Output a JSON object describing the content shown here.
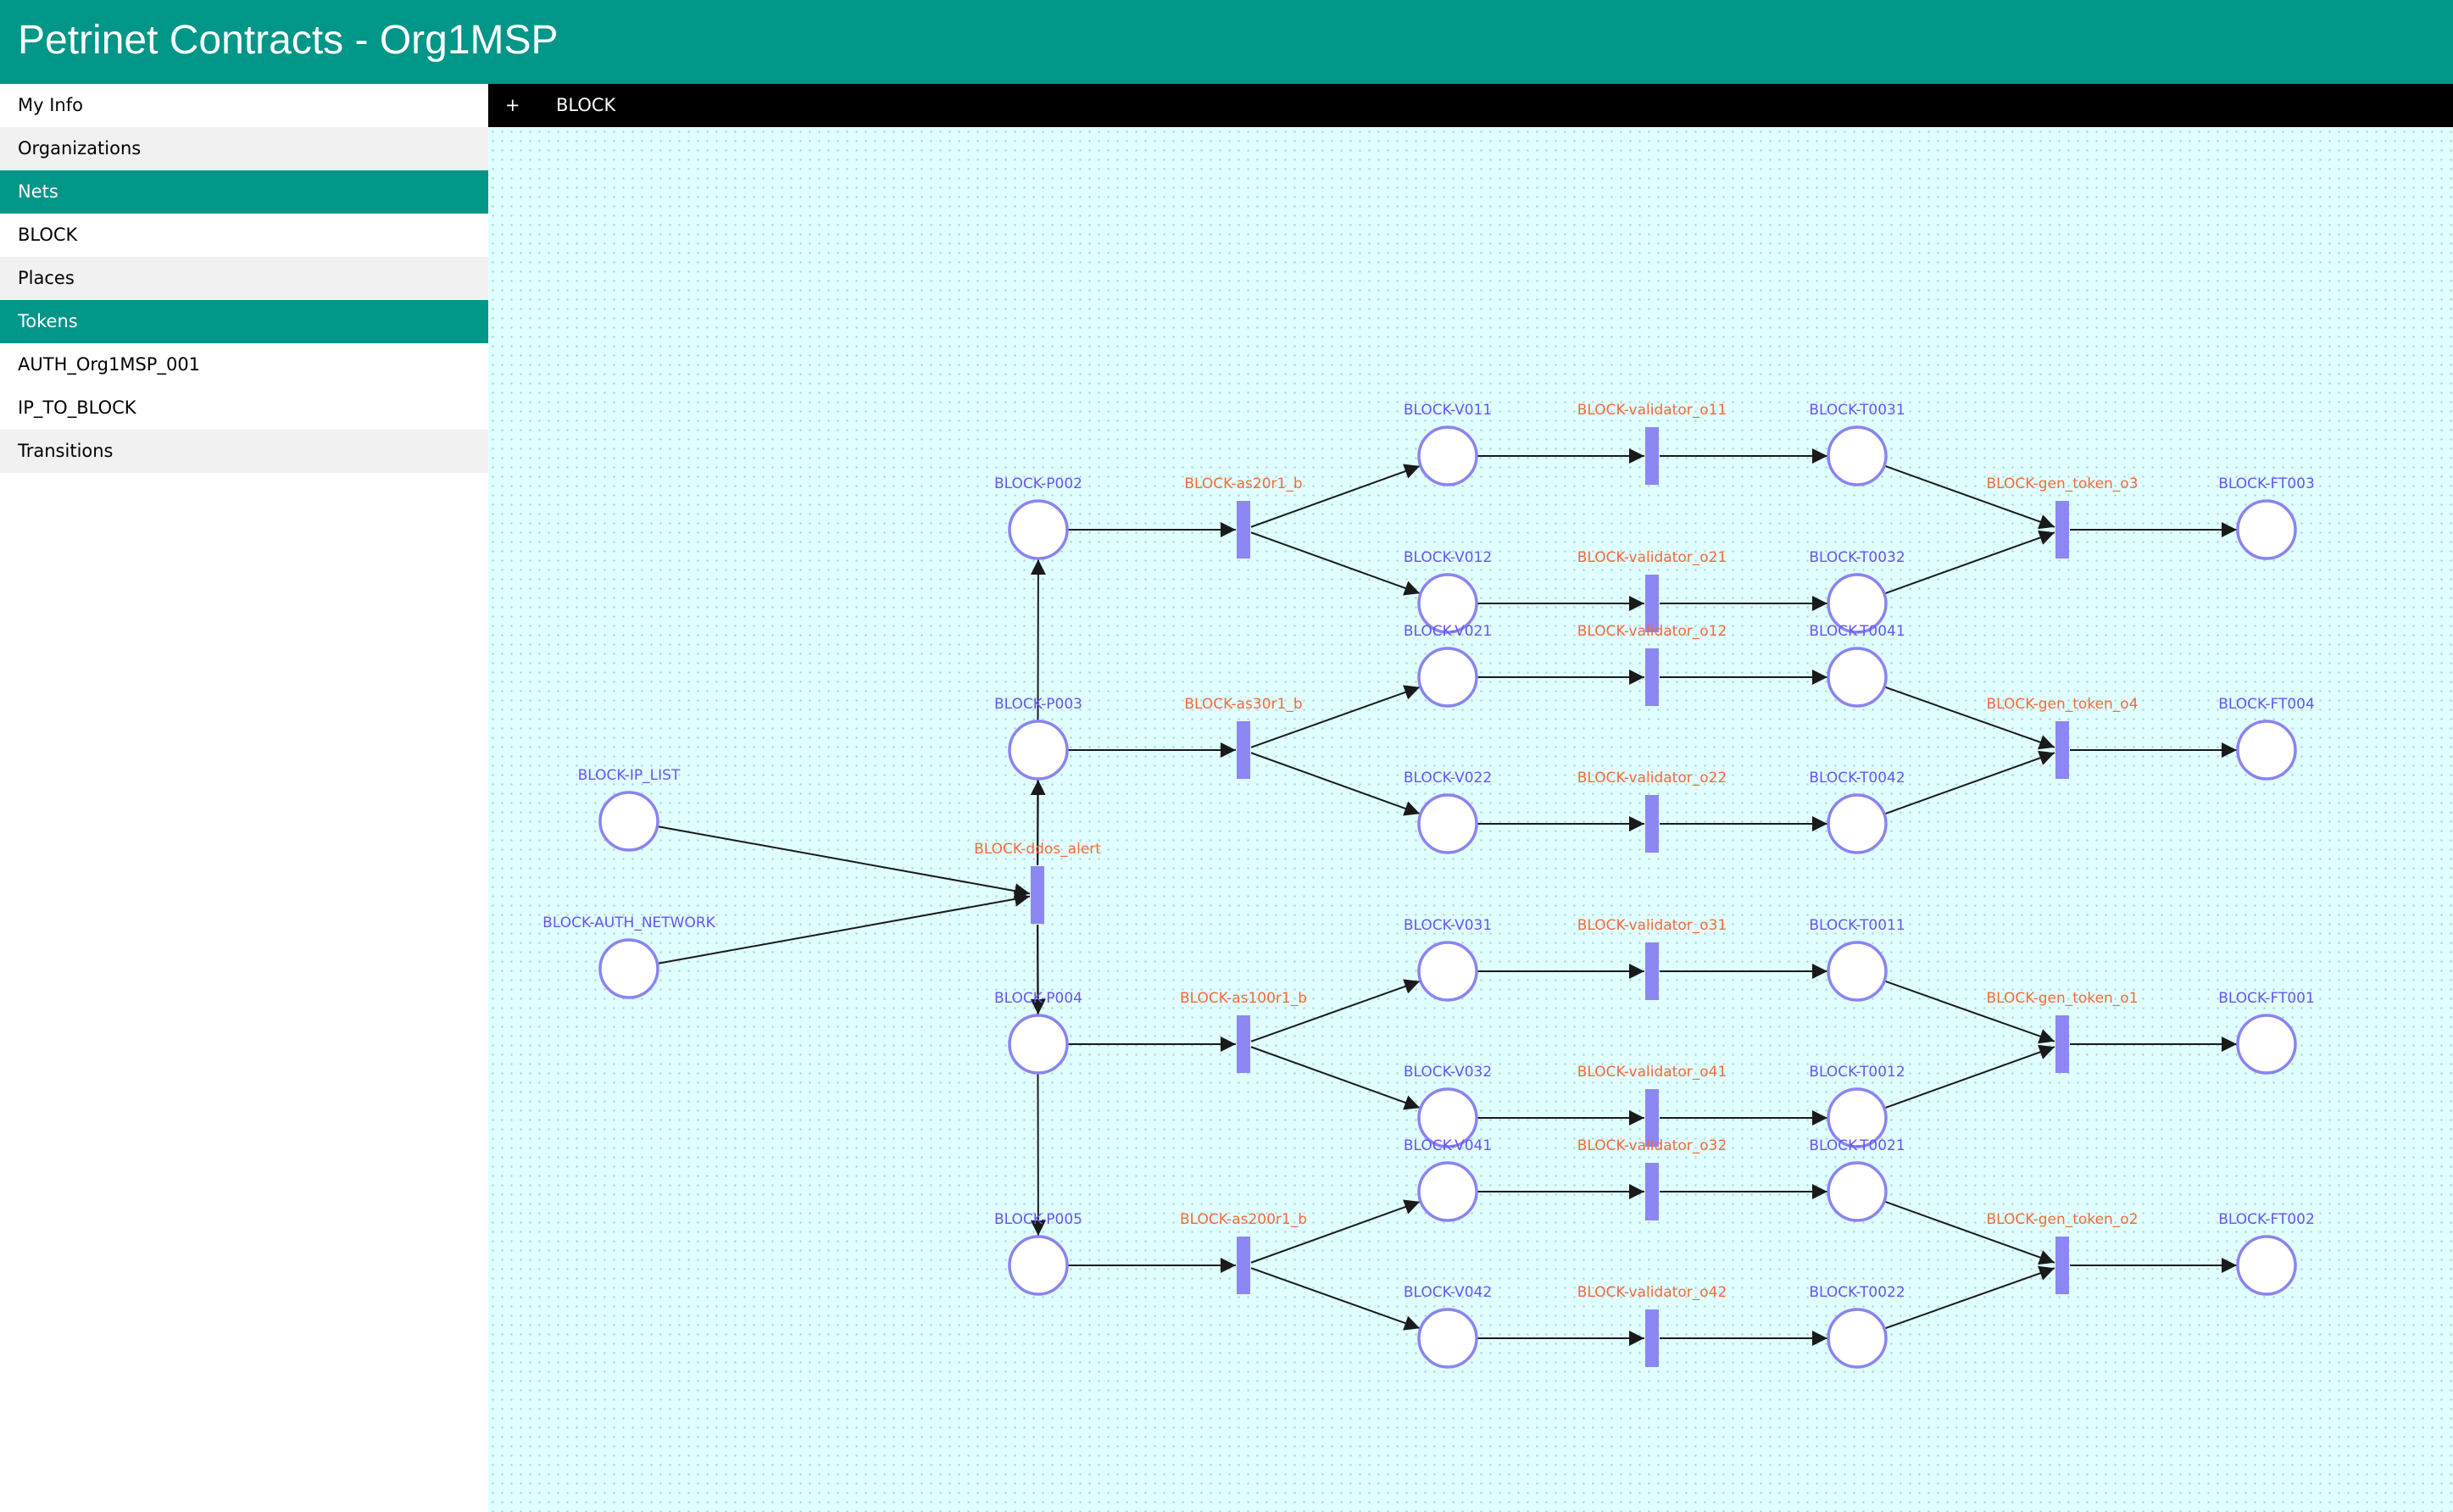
{
  "header": {
    "title": "Petrinet Contracts - Org1MSP"
  },
  "sidebar": {
    "items": [
      {
        "label": "My Info",
        "style": "plain",
        "name": "sidebar-item-my-info"
      },
      {
        "label": "Organizations",
        "style": "grey",
        "name": "sidebar-item-organizations"
      },
      {
        "label": "Nets",
        "style": "active",
        "name": "sidebar-section-nets"
      },
      {
        "label": "BLOCK",
        "style": "plain",
        "name": "sidebar-item-block"
      },
      {
        "label": "Places",
        "style": "grey",
        "name": "sidebar-item-places"
      },
      {
        "label": "Tokens",
        "style": "active",
        "name": "sidebar-section-tokens"
      },
      {
        "label": "AUTH_Org1MSP_001",
        "style": "plain",
        "name": "sidebar-item-auth-org1msp-001"
      },
      {
        "label": "IP_TO_BLOCK",
        "style": "plain",
        "name": "sidebar-item-ip-to-block"
      },
      {
        "label": "Transitions",
        "style": "grey",
        "name": "sidebar-item-transitions"
      }
    ]
  },
  "tabbar": {
    "add_label": "+",
    "tab_label": "BLOCK"
  },
  "colors": {
    "accent": "#009688",
    "place_stroke": "#8b83f0",
    "place_label": "#6655ee",
    "transition_fill": "#8c87f3",
    "transition_label": "#f26a3a",
    "arc": "#1a1a1a",
    "canvas_bg": "#e0ffff"
  },
  "net": {
    "places": [
      {
        "id": "ipl",
        "label": "BLOCK-IP_LIST"
      },
      {
        "id": "aut",
        "label": "BLOCK-AUTH_NETWORK"
      },
      {
        "id": "p002",
        "label": "BLOCK-P002"
      },
      {
        "id": "p003",
        "label": "BLOCK-P003"
      },
      {
        "id": "p004",
        "label": "BLOCK-P004"
      },
      {
        "id": "p005",
        "label": "BLOCK-P005"
      },
      {
        "id": "v011",
        "label": "BLOCK-V011"
      },
      {
        "id": "v012",
        "label": "BLOCK-V012"
      },
      {
        "id": "v021",
        "label": "BLOCK-V021"
      },
      {
        "id": "v022",
        "label": "BLOCK-V022"
      },
      {
        "id": "v031",
        "label": "BLOCK-V031"
      },
      {
        "id": "v032",
        "label": "BLOCK-V032"
      },
      {
        "id": "v041",
        "label": "BLOCK-V041"
      },
      {
        "id": "v042",
        "label": "BLOCK-V042"
      },
      {
        "id": "t0031",
        "label": "BLOCK-T0031"
      },
      {
        "id": "t0032",
        "label": "BLOCK-T0032"
      },
      {
        "id": "t0041",
        "label": "BLOCK-T0041"
      },
      {
        "id": "t0042",
        "label": "BLOCK-T0042"
      },
      {
        "id": "t0011",
        "label": "BLOCK-T0011"
      },
      {
        "id": "t0012",
        "label": "BLOCK-T0012"
      },
      {
        "id": "t0021",
        "label": "BLOCK-T0021"
      },
      {
        "id": "t0022",
        "label": "BLOCK-T0022"
      },
      {
        "id": "ft003",
        "label": "BLOCK-FT003"
      },
      {
        "id": "ft004",
        "label": "BLOCK-FT004"
      },
      {
        "id": "ft001",
        "label": "BLOCK-FT001"
      },
      {
        "id": "ft002",
        "label": "BLOCK-FT002"
      }
    ],
    "transitions": [
      {
        "id": "ddos",
        "label": "BLOCK-ddos_alert"
      },
      {
        "id": "as20",
        "label": "BLOCK-as20r1_b"
      },
      {
        "id": "as30",
        "label": "BLOCK-as30r1_b"
      },
      {
        "id": "as100",
        "label": "BLOCK-as100r1_b"
      },
      {
        "id": "as200",
        "label": "BLOCK-as200r1_b"
      },
      {
        "id": "vo11",
        "label": "BLOCK-validator_o11"
      },
      {
        "id": "vo21",
        "label": "BLOCK-validator_o21"
      },
      {
        "id": "vo12",
        "label": "BLOCK-validator_o12"
      },
      {
        "id": "vo22",
        "label": "BLOCK-validator_o22"
      },
      {
        "id": "vo31",
        "label": "BLOCK-validator_o31"
      },
      {
        "id": "vo41",
        "label": "BLOCK-validator_o41"
      },
      {
        "id": "vo32",
        "label": "BLOCK-validator_o32"
      },
      {
        "id": "vo42",
        "label": "BLOCK-validator_o42"
      },
      {
        "id": "g3",
        "label": "BLOCK-gen_token_o3"
      },
      {
        "id": "g4",
        "label": "BLOCK-gen_token_o4"
      },
      {
        "id": "g1",
        "label": "BLOCK-gen_token_o1"
      },
      {
        "id": "g2",
        "label": "BLOCK-gen_token_o2"
      }
    ],
    "arcs": [
      [
        "ipl",
        "ddos"
      ],
      [
        "aut",
        "ddos"
      ],
      [
        "ddos",
        "p002"
      ],
      [
        "ddos",
        "p003"
      ],
      [
        "ddos",
        "p004"
      ],
      [
        "ddos",
        "p005"
      ],
      [
        "p002",
        "as20"
      ],
      [
        "p003",
        "as30"
      ],
      [
        "p004",
        "as100"
      ],
      [
        "p005",
        "as200"
      ],
      [
        "as20",
        "v011"
      ],
      [
        "as20",
        "v012"
      ],
      [
        "as30",
        "v021"
      ],
      [
        "as30",
        "v022"
      ],
      [
        "as100",
        "v031"
      ],
      [
        "as100",
        "v032"
      ],
      [
        "as200",
        "v041"
      ],
      [
        "as200",
        "v042"
      ],
      [
        "v011",
        "vo11"
      ],
      [
        "vo11",
        "t0031"
      ],
      [
        "v012",
        "vo21"
      ],
      [
        "vo21",
        "t0032"
      ],
      [
        "v021",
        "vo12"
      ],
      [
        "vo12",
        "t0041"
      ],
      [
        "v022",
        "vo22"
      ],
      [
        "vo22",
        "t0042"
      ],
      [
        "v031",
        "vo31"
      ],
      [
        "vo31",
        "t0011"
      ],
      [
        "v032",
        "vo41"
      ],
      [
        "vo41",
        "t0012"
      ],
      [
        "v041",
        "vo32"
      ],
      [
        "vo32",
        "t0021"
      ],
      [
        "v042",
        "vo42"
      ],
      [
        "vo42",
        "t0022"
      ],
      [
        "t0031",
        "g3"
      ],
      [
        "t0032",
        "g3"
      ],
      [
        "g3",
        "ft003"
      ],
      [
        "t0041",
        "g4"
      ],
      [
        "t0042",
        "g4"
      ],
      [
        "g4",
        "ft004"
      ],
      [
        "t0011",
        "g1"
      ],
      [
        "t0012",
        "g1"
      ],
      [
        "g1",
        "ft001"
      ],
      [
        "t0021",
        "g2"
      ],
      [
        "t0022",
        "g2"
      ],
      [
        "g2",
        "ft002"
      ]
    ]
  }
}
